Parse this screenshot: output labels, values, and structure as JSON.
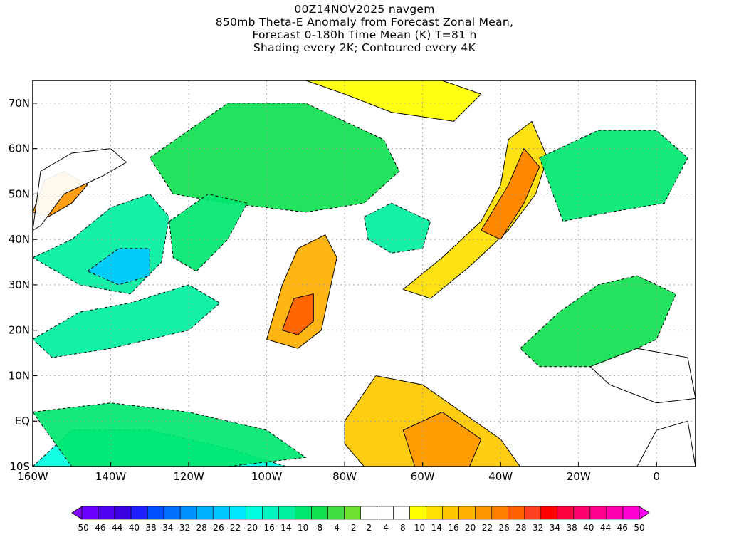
{
  "title": {
    "lines": [
      "00Z14NOV2025 navgem",
      "850mb Theta-E Anomaly from Forecast Zonal Mean,",
      "Forecast 0-180h Time Mean (K) T=81 h",
      "Shading every 2K; Contoured every 4K"
    ]
  },
  "map": {
    "lon_range": [
      -160,
      10
    ],
    "lat_range": [
      -10,
      75
    ],
    "lat_ticks": [
      {
        "value": 70,
        "label": "70N"
      },
      {
        "value": 60,
        "label": "60N"
      },
      {
        "value": 50,
        "label": "50N"
      },
      {
        "value": 40,
        "label": "40N"
      },
      {
        "value": 30,
        "label": "30N"
      },
      {
        "value": 20,
        "label": "20N"
      },
      {
        "value": 10,
        "label": "10N"
      },
      {
        "value": 0,
        "label": "EQ"
      },
      {
        "value": -10,
        "label": "10S"
      }
    ],
    "lon_ticks": [
      {
        "value": -160,
        "label": "160W"
      },
      {
        "value": -140,
        "label": "140W"
      },
      {
        "value": -120,
        "label": "120W"
      },
      {
        "value": -100,
        "label": "100W"
      },
      {
        "value": -80,
        "label": "80W"
      },
      {
        "value": -60,
        "label": "60W"
      },
      {
        "value": -40,
        "label": "40W"
      },
      {
        "value": -20,
        "label": "20W"
      },
      {
        "value": 0,
        "label": "0"
      }
    ],
    "features": [
      {
        "name": "warm-anomaly-gulf-of-alaska",
        "type": "warm",
        "level": 22,
        "points": [
          [
            -160,
            46
          ],
          [
            -157,
            53
          ],
          [
            -152,
            55
          ],
          [
            -146,
            52
          ],
          [
            -150,
            48
          ],
          [
            -156,
            45
          ]
        ]
      },
      {
        "name": "warm-anomaly-alaska-plume",
        "type": "warm",
        "level": 8,
        "points": [
          [
            -160,
            42
          ],
          [
            -158,
            55
          ],
          [
            -150,
            59
          ],
          [
            -140,
            60
          ],
          [
            -136,
            57
          ],
          [
            -142,
            54
          ],
          [
            -152,
            50
          ],
          [
            -158,
            43
          ]
        ]
      },
      {
        "name": "cold-anomaly-northeast-pacific",
        "type": "cold",
        "level": -14,
        "points": [
          [
            -160,
            36
          ],
          [
            -150,
            40
          ],
          [
            -140,
            47
          ],
          [
            -130,
            50
          ],
          [
            -125,
            45
          ],
          [
            -127,
            35
          ],
          [
            -135,
            28
          ],
          [
            -148,
            30
          ]
        ]
      },
      {
        "name": "cold-anomaly-pacific-core",
        "type": "cold",
        "level": -24,
        "points": [
          [
            -146,
            33
          ],
          [
            -138,
            38
          ],
          [
            -130,
            38
          ],
          [
            -130,
            32
          ],
          [
            -138,
            30
          ]
        ]
      },
      {
        "name": "cold-anomaly-canada",
        "type": "cold",
        "level": -8,
        "points": [
          [
            -130,
            58
          ],
          [
            -110,
            70
          ],
          [
            -90,
            70
          ],
          [
            -70,
            62
          ],
          [
            -66,
            55
          ],
          [
            -75,
            48
          ],
          [
            -90,
            46
          ],
          [
            -110,
            48
          ],
          [
            -124,
            50
          ]
        ]
      },
      {
        "name": "cold-anomaly-western-us",
        "type": "cold",
        "level": -10,
        "points": [
          [
            -125,
            44
          ],
          [
            -115,
            50
          ],
          [
            -105,
            48
          ],
          [
            -110,
            40
          ],
          [
            -118,
            33
          ],
          [
            -124,
            36
          ]
        ]
      },
      {
        "name": "cold-anomaly-western-atlantic",
        "type": "cold",
        "level": -12,
        "points": [
          [
            -75,
            45
          ],
          [
            -68,
            48
          ],
          [
            -58,
            44
          ],
          [
            -60,
            38
          ],
          [
            -68,
            37
          ],
          [
            -74,
            40
          ]
        ]
      },
      {
        "name": "warm-anomaly-gulf-of-mexico",
        "type": "warm",
        "level": 18,
        "points": [
          [
            -100,
            18
          ],
          [
            -96,
            30
          ],
          [
            -92,
            38
          ],
          [
            -85,
            41
          ],
          [
            -82,
            36
          ],
          [
            -84,
            28
          ],
          [
            -86,
            20
          ],
          [
            -92,
            16
          ]
        ]
      },
      {
        "name": "warm-anomaly-mexico-core",
        "type": "warm",
        "level": 26,
        "points": [
          [
            -96,
            20
          ],
          [
            -93,
            27
          ],
          [
            -88,
            28
          ],
          [
            -88,
            22
          ],
          [
            -92,
            19
          ]
        ]
      },
      {
        "name": "warm-anomaly-atlantic-plume",
        "type": "warm",
        "level": 14,
        "points": [
          [
            -65,
            29
          ],
          [
            -55,
            36
          ],
          [
            -45,
            44
          ],
          [
            -40,
            52
          ],
          [
            -38,
            62
          ],
          [
            -32,
            66
          ],
          [
            -28,
            58
          ],
          [
            -31,
            50
          ],
          [
            -38,
            42
          ],
          [
            -48,
            34
          ],
          [
            -58,
            27
          ]
        ]
      },
      {
        "name": "warm-anomaly-atlantic-core",
        "type": "warm",
        "level": 24,
        "points": [
          [
            -45,
            42
          ],
          [
            -38,
            52
          ],
          [
            -34,
            60
          ],
          [
            -30,
            56
          ],
          [
            -34,
            48
          ],
          [
            -40,
            40
          ]
        ]
      },
      {
        "name": "warm-anomaly-greenland",
        "type": "warm",
        "level": 10,
        "points": [
          [
            -90,
            75
          ],
          [
            -75,
            75
          ],
          [
            -55,
            75
          ],
          [
            -45,
            72
          ],
          [
            -52,
            66
          ],
          [
            -68,
            68
          ],
          [
            -80,
            72
          ]
        ]
      },
      {
        "name": "cold-anomaly-eastern-atlantic",
        "type": "cold",
        "level": -10,
        "points": [
          [
            -30,
            58
          ],
          [
            -15,
            64
          ],
          [
            0,
            64
          ],
          [
            8,
            58
          ],
          [
            2,
            48
          ],
          [
            -12,
            46
          ],
          [
            -24,
            44
          ]
        ]
      },
      {
        "name": "cold-anomaly-subtropical-atlantic",
        "type": "cold",
        "level": -8,
        "points": [
          [
            -35,
            16
          ],
          [
            -25,
            24
          ],
          [
            -15,
            30
          ],
          [
            -5,
            32
          ],
          [
            5,
            28
          ],
          [
            0,
            18
          ],
          [
            -15,
            12
          ],
          [
            -30,
            12
          ]
        ]
      },
      {
        "name": "warm-anomaly-south-america",
        "type": "warm",
        "level": 16,
        "points": [
          [
            -80,
            0
          ],
          [
            -72,
            10
          ],
          [
            -60,
            8
          ],
          [
            -50,
            2
          ],
          [
            -40,
            -4
          ],
          [
            -35,
            -10
          ],
          [
            -75,
            -10
          ],
          [
            -80,
            -5
          ]
        ]
      },
      {
        "name": "warm-anomaly-amazon-core",
        "type": "warm",
        "level": 22,
        "points": [
          [
            -65,
            -2
          ],
          [
            -55,
            2
          ],
          [
            -45,
            -4
          ],
          [
            -48,
            -10
          ],
          [
            -62,
            -10
          ]
        ]
      },
      {
        "name": "cold-anomaly-equatorial-pacific",
        "type": "cold",
        "level": -20,
        "points": [
          [
            -160,
            -10
          ],
          [
            -150,
            -2
          ],
          [
            -130,
            -2
          ],
          [
            -110,
            -6
          ],
          [
            -95,
            -10
          ]
        ]
      },
      {
        "name": "cold-anomaly-tropical-pacific",
        "type": "cold",
        "level": -10,
        "points": [
          [
            -160,
            2
          ],
          [
            -140,
            4
          ],
          [
            -120,
            2
          ],
          [
            -100,
            -2
          ],
          [
            -90,
            -8
          ],
          [
            -110,
            -10
          ],
          [
            -150,
            -10
          ]
        ]
      },
      {
        "name": "warm-anomaly-west-africa",
        "type": "warm",
        "level": 6,
        "points": [
          [
            -17,
            12
          ],
          [
            -5,
            16
          ],
          [
            8,
            14
          ],
          [
            10,
            5
          ],
          [
            0,
            4
          ],
          [
            -12,
            8
          ]
        ]
      },
      {
        "name": "warm-anomaly-south-atlantic",
        "type": "warm",
        "level": 8,
        "points": [
          [
            -5,
            -10
          ],
          [
            0,
            -2
          ],
          [
            8,
            0
          ],
          [
            10,
            -10
          ]
        ]
      },
      {
        "name": "cold-anomaly-subtropical-pacific",
        "type": "cold",
        "level": -14,
        "points": [
          [
            -160,
            18
          ],
          [
            -148,
            24
          ],
          [
            -135,
            26
          ],
          [
            -120,
            30
          ],
          [
            -112,
            26
          ],
          [
            -120,
            20
          ],
          [
            -140,
            16
          ],
          [
            -155,
            14
          ]
        ]
      }
    ]
  },
  "colorbar": {
    "labels": [
      "-50",
      "-46",
      "-44",
      "-40",
      "-38",
      "-34",
      "-32",
      "-28",
      "-26",
      "-22",
      "-20",
      "-16",
      "-14",
      "-10",
      "-8",
      "-4",
      "-2",
      "2",
      "4",
      "8",
      "10",
      "14",
      "16",
      "20",
      "22",
      "26",
      "28",
      "32",
      "34",
      "38",
      "40",
      "44",
      "46",
      "50"
    ],
    "colors": [
      "#8000ff",
      "#6a00ff",
      "#5000f0",
      "#3a00e0",
      "#2020ff",
      "#0050ff",
      "#0070ff",
      "#0090ff",
      "#00b0ff",
      "#00c8ff",
      "#00e8ff",
      "#00ffe0",
      "#00f5c0",
      "#00f0a0",
      "#00e870",
      "#10e050",
      "#40e040",
      "#70e030",
      "#ffffff",
      "#ffffff",
      "#ffffff",
      "#ffff00",
      "#ffe000",
      "#ffc800",
      "#ffb000",
      "#ff9800",
      "#ff8000",
      "#ff6000",
      "#ff4020",
      "#ff0000",
      "#ff0040",
      "#ff0070",
      "#ff0090",
      "#ff00b0",
      "#ff00d0",
      "#ff00ff"
    ]
  }
}
